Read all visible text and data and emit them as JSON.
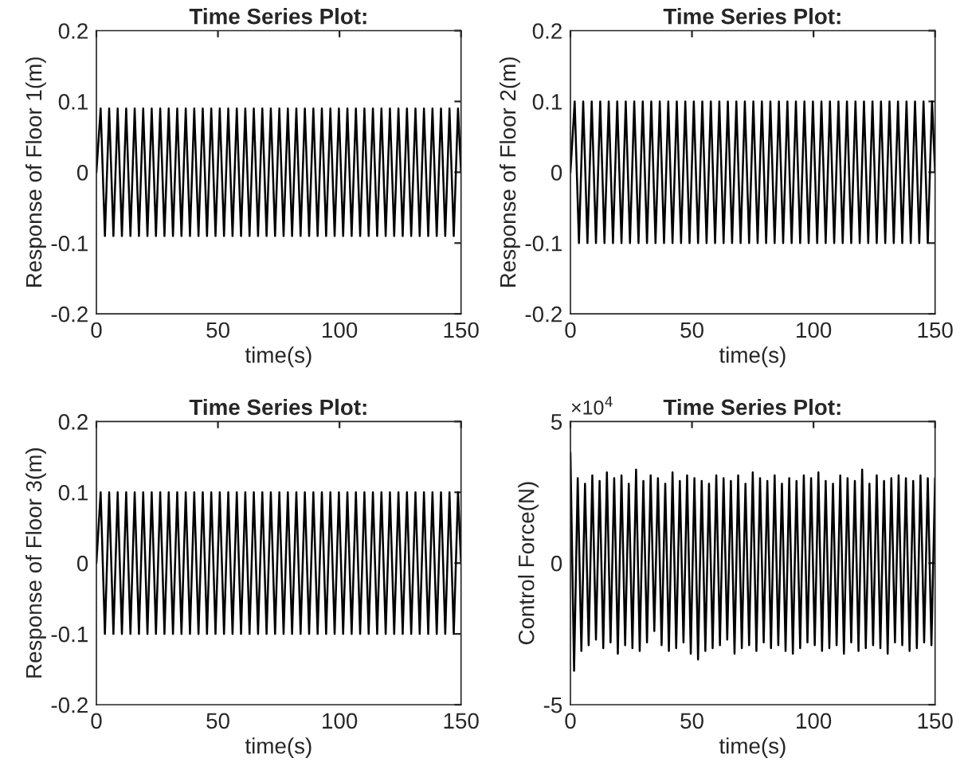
{
  "chart_data": [
    {
      "type": "line",
      "title": "Time Series Plot:",
      "xlabel": "time(s)",
      "ylabel": "Response of Floor 1(m)",
      "xlim": [
        0,
        150
      ],
      "xticks": [
        0,
        50,
        100,
        150
      ],
      "ylim": [
        -0.2,
        0.2
      ],
      "yticks": [
        -0.2,
        -0.1,
        0,
        0.1,
        0.2
      ],
      "grid": false,
      "x": [
        0,
        1.75,
        3.5,
        5.25,
        7,
        8.75,
        10.5,
        12.25,
        14,
        15.75,
        17.5,
        19.25,
        21,
        22.75,
        24.5,
        26.25,
        28,
        29.75,
        31.5,
        33.25,
        35,
        36.75,
        38.5,
        40.25,
        42,
        43.75,
        45.5,
        47.25,
        49,
        50.75,
        52.5,
        54.25,
        56,
        57.75,
        59.5,
        61.25,
        63,
        64.75,
        66.5,
        68.25,
        70,
        71.75,
        73.5,
        75.25,
        77,
        78.75,
        80.5,
        82.25,
        84,
        85.75,
        87.5,
        89.25,
        91,
        92.75,
        94.5,
        96.25,
        98,
        99.75,
        101.5,
        103.25,
        105,
        106.75,
        108.5,
        110.25,
        112,
        113.75,
        115.5,
        117.25,
        119,
        120.75,
        122.5,
        124.25,
        126,
        127.75,
        129.5,
        131.25,
        133,
        134.75,
        136.5,
        138.25,
        140,
        141.75,
        143.5,
        145.25,
        147,
        148.75,
        150
      ],
      "series": [
        {
          "color": "#000000",
          "values": [
            0,
            0.09,
            -0.09,
            0.09,
            -0.09,
            0.09,
            -0.09,
            0.09,
            -0.09,
            0.09,
            -0.09,
            0.09,
            -0.09,
            0.09,
            -0.09,
            0.09,
            -0.09,
            0.09,
            -0.09,
            0.09,
            -0.09,
            0.09,
            -0.09,
            0.09,
            -0.09,
            0.09,
            -0.09,
            0.09,
            -0.09,
            0.09,
            -0.09,
            0.09,
            -0.09,
            0.09,
            -0.09,
            0.09,
            -0.09,
            0.09,
            -0.09,
            0.09,
            -0.09,
            0.09,
            -0.09,
            0.09,
            -0.09,
            0.09,
            -0.09,
            0.09,
            -0.09,
            0.09,
            -0.09,
            0.09,
            -0.09,
            0.09,
            -0.09,
            0.09,
            -0.09,
            0.09,
            -0.09,
            0.09,
            -0.09,
            0.09,
            -0.09,
            0.09,
            -0.09,
            0.09,
            -0.09,
            0.09,
            -0.09,
            0.09,
            -0.09,
            0.09,
            -0.09,
            0.09,
            -0.09,
            0.09,
            -0.09,
            0.09,
            -0.09,
            0.09,
            -0.09,
            0.09,
            -0.09,
            0.09,
            -0.09,
            0.09,
            0
          ]
        }
      ]
    },
    {
      "type": "line",
      "title": "Time Series Plot:",
      "xlabel": "time(s)",
      "ylabel": "Response of Floor 2(m)",
      "xlim": [
        0,
        150
      ],
      "xticks": [
        0,
        50,
        100,
        150
      ],
      "ylim": [
        -0.2,
        0.2
      ],
      "yticks": [
        -0.2,
        -0.1,
        0,
        0.1,
        0.2
      ],
      "grid": false,
      "x": [
        0,
        1.75,
        3.5,
        5.25,
        7,
        8.75,
        10.5,
        12.25,
        14,
        15.75,
        17.5,
        19.25,
        21,
        22.75,
        24.5,
        26.25,
        28,
        29.75,
        31.5,
        33.25,
        35,
        36.75,
        38.5,
        40.25,
        42,
        43.75,
        45.5,
        47.25,
        49,
        50.75,
        52.5,
        54.25,
        56,
        57.75,
        59.5,
        61.25,
        63,
        64.75,
        66.5,
        68.25,
        70,
        71.75,
        73.5,
        75.25,
        77,
        78.75,
        80.5,
        82.25,
        84,
        85.75,
        87.5,
        89.25,
        91,
        92.75,
        94.5,
        96.25,
        98,
        99.75,
        101.5,
        103.25,
        105,
        106.75,
        108.5,
        110.25,
        112,
        113.75,
        115.5,
        117.25,
        119,
        120.75,
        122.5,
        124.25,
        126,
        127.75,
        129.5,
        131.25,
        133,
        134.75,
        136.5,
        138.25,
        140,
        141.75,
        143.5,
        145.25,
        147,
        148.75,
        150
      ],
      "series": [
        {
          "color": "#000000",
          "values": [
            0,
            0.1,
            -0.1,
            0.1,
            -0.1,
            0.1,
            -0.1,
            0.1,
            -0.1,
            0.1,
            -0.1,
            0.1,
            -0.1,
            0.1,
            -0.1,
            0.1,
            -0.1,
            0.1,
            -0.1,
            0.1,
            -0.1,
            0.1,
            -0.1,
            0.1,
            -0.1,
            0.1,
            -0.1,
            0.1,
            -0.1,
            0.1,
            -0.1,
            0.1,
            -0.1,
            0.1,
            -0.1,
            0.1,
            -0.1,
            0.1,
            -0.1,
            0.1,
            -0.1,
            0.1,
            -0.1,
            0.1,
            -0.1,
            0.1,
            -0.1,
            0.1,
            -0.1,
            0.1,
            -0.1,
            0.1,
            -0.1,
            0.1,
            -0.1,
            0.1,
            -0.1,
            0.1,
            -0.1,
            0.1,
            -0.1,
            0.1,
            -0.1,
            0.1,
            -0.1,
            0.1,
            -0.1,
            0.1,
            -0.1,
            0.1,
            -0.1,
            0.1,
            -0.1,
            0.1,
            -0.1,
            0.1,
            -0.1,
            0.1,
            -0.1,
            0.1,
            -0.1,
            0.1,
            -0.1,
            0.1,
            -0.1,
            0.1,
            0
          ]
        }
      ]
    },
    {
      "type": "line",
      "title": "Time Series Plot:",
      "xlabel": "time(s)",
      "ylabel": "Response of Floor 3(m)",
      "xlim": [
        0,
        150
      ],
      "xticks": [
        0,
        50,
        100,
        150
      ],
      "ylim": [
        -0.2,
        0.2
      ],
      "yticks": [
        -0.2,
        -0.1,
        0,
        0.1,
        0.2
      ],
      "grid": false,
      "x": [
        0,
        1.75,
        3.5,
        5.25,
        7,
        8.75,
        10.5,
        12.25,
        14,
        15.75,
        17.5,
        19.25,
        21,
        22.75,
        24.5,
        26.25,
        28,
        29.75,
        31.5,
        33.25,
        35,
        36.75,
        38.5,
        40.25,
        42,
        43.75,
        45.5,
        47.25,
        49,
        50.75,
        52.5,
        54.25,
        56,
        57.75,
        59.5,
        61.25,
        63,
        64.75,
        66.5,
        68.25,
        70,
        71.75,
        73.5,
        75.25,
        77,
        78.75,
        80.5,
        82.25,
        84,
        85.75,
        87.5,
        89.25,
        91,
        92.75,
        94.5,
        96.25,
        98,
        99.75,
        101.5,
        103.25,
        105,
        106.75,
        108.5,
        110.25,
        112,
        113.75,
        115.5,
        117.25,
        119,
        120.75,
        122.5,
        124.25,
        126,
        127.75,
        129.5,
        131.25,
        133,
        134.75,
        136.5,
        138.25,
        140,
        141.75,
        143.5,
        145.25,
        147,
        148.75,
        150
      ],
      "series": [
        {
          "color": "#000000",
          "values": [
            0,
            0.1,
            -0.1,
            0.1,
            -0.1,
            0.1,
            -0.1,
            0.1,
            -0.1,
            0.1,
            -0.1,
            0.1,
            -0.1,
            0.1,
            -0.1,
            0.1,
            -0.1,
            0.1,
            -0.1,
            0.1,
            -0.1,
            0.1,
            -0.1,
            0.1,
            -0.1,
            0.1,
            -0.1,
            0.1,
            -0.1,
            0.1,
            -0.1,
            0.1,
            -0.1,
            0.1,
            -0.1,
            0.1,
            -0.1,
            0.1,
            -0.1,
            0.1,
            -0.1,
            0.1,
            -0.1,
            0.1,
            -0.1,
            0.1,
            -0.1,
            0.1,
            -0.1,
            0.1,
            -0.1,
            0.1,
            -0.1,
            0.1,
            -0.1,
            0.1,
            -0.1,
            0.1,
            -0.1,
            0.1,
            -0.1,
            0.1,
            -0.1,
            0.1,
            -0.1,
            0.1,
            -0.1,
            0.1,
            -0.1,
            0.1,
            -0.1,
            0.1,
            -0.1,
            0.1,
            -0.1,
            0.1,
            -0.1,
            0.1,
            -0.1,
            0.1,
            -0.1,
            0.1,
            -0.1,
            0.1,
            -0.1,
            0.1,
            0
          ]
        }
      ]
    },
    {
      "type": "line",
      "title": "Time Series Plot:",
      "xlabel": "time(s)",
      "ylabel": "Control Force(N)",
      "annotations": [
        "×10$^{4}$"
      ],
      "xlim": [
        0,
        150
      ],
      "xticks": [
        0,
        50,
        100,
        150
      ],
      "ylim": [
        -5,
        5
      ],
      "yticks": [
        -5,
        0,
        5
      ],
      "grid": false,
      "x": [
        0,
        1.5,
        3,
        4.5,
        6,
        7.5,
        9,
        10.5,
        12,
        13.5,
        15,
        16.5,
        18,
        19.5,
        21,
        22.5,
        24,
        25.5,
        27,
        28.5,
        30,
        31.5,
        33,
        34.5,
        36,
        37.5,
        39,
        40.5,
        42,
        43.5,
        45,
        46.5,
        48,
        49.5,
        51,
        52.5,
        54,
        55.5,
        57,
        58.5,
        60,
        61.5,
        63,
        64.5,
        66,
        67.5,
        69,
        70.5,
        72,
        73.5,
        75,
        76.5,
        78,
        79.5,
        81,
        82.5,
        84,
        85.5,
        87,
        88.5,
        90,
        91.5,
        93,
        94.5,
        96,
        97.5,
        99,
        100.5,
        102,
        103.5,
        105,
        106.5,
        108,
        109.5,
        111,
        112.5,
        114,
        115.5,
        117,
        118.5,
        120,
        121.5,
        123,
        124.5,
        126,
        127.5,
        129,
        130.5,
        132,
        133.5,
        135,
        136.5,
        138,
        139.5,
        141,
        142.5,
        144,
        145.5,
        147,
        148.5,
        150
      ],
      "series": [
        {
          "color": "#000000",
          "values": [
            3.9,
            -3.8,
            3,
            -3.1,
            2.8,
            -2.9,
            3.1,
            -2.7,
            2.9,
            -3,
            3.2,
            -2.8,
            3,
            -3.2,
            3.1,
            -2.9,
            2.8,
            -3,
            3.3,
            -3.1,
            2.9,
            -2.8,
            3.1,
            -2.4,
            3,
            -2.9,
            2.8,
            -3.1,
            3.2,
            -3,
            2.9,
            -2.8,
            3.1,
            -3.2,
            3,
            -3.4,
            2.9,
            -3.1,
            2.8,
            -3,
            3.1,
            -2.9,
            3,
            -2.7,
            2.9,
            -3.2,
            3.1,
            -3,
            2.8,
            -2.9,
            3.2,
            -3.1,
            3,
            -2.8,
            2.9,
            -3,
            3.1,
            -2.9,
            2.8,
            -3.1,
            3,
            -3.2,
            2.9,
            -3,
            3.1,
            -2.8,
            3,
            -2.9,
            3.2,
            -3.1,
            2.9,
            -3,
            2.8,
            -2.9,
            3.1,
            -3.2,
            3,
            -2.8,
            2.9,
            -3.1,
            3.3,
            -3,
            2.8,
            -2.9,
            3.1,
            -3,
            2.9,
            -3.2,
            3,
            -2.8,
            3.1,
            -2.9,
            3,
            -3.1,
            2.9,
            -3,
            3.1,
            -2.8,
            3,
            -2.9,
            3
          ]
        }
      ]
    }
  ]
}
